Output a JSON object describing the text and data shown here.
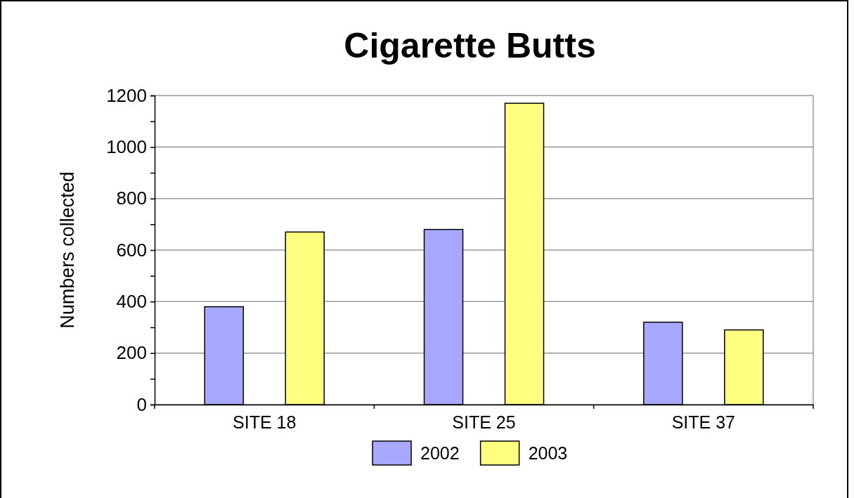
{
  "chart_data": {
    "type": "bar",
    "title": "Cigarette Butts",
    "ylabel": "Numbers collected",
    "categories": [
      "SITE 18",
      "SITE 25",
      "SITE 37"
    ],
    "series": [
      {
        "name": "2002",
        "color": "#a8a8ff",
        "values": [
          380,
          680,
          320
        ]
      },
      {
        "name": "2003",
        "color": "#ffff80",
        "values": [
          670,
          1170,
          290
        ]
      }
    ],
    "ylim": [
      0,
      1200
    ],
    "yticks": [
      0,
      {
        "value": 100,
        "label": null
      },
      200,
      {
        "value": 300,
        "label": null
      },
      400,
      {
        "value": 500,
        "label": null
      },
      600,
      {
        "value": 700,
        "label": null
      },
      800,
      {
        "value": 900,
        "label": null
      },
      1000,
      {
        "value": 1100,
        "label": null
      },
      1200
    ],
    "grid": "y",
    "legend": "bottom"
  }
}
